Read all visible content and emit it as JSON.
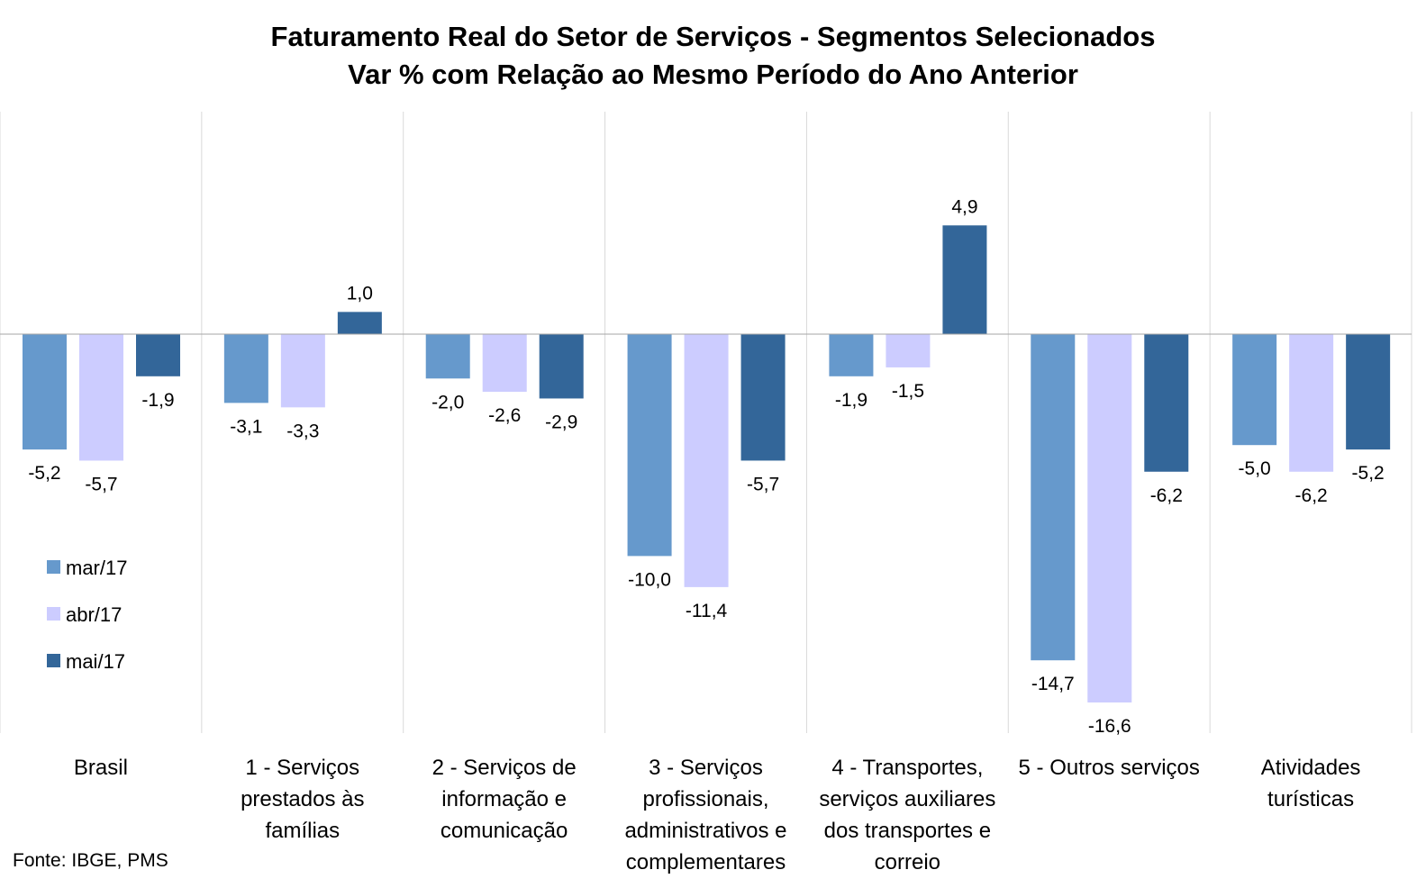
{
  "chart_data": {
    "type": "bar",
    "title": "Faturamento Real do Setor de Serviços - Segmentos Selecionados",
    "subtitle": "Var % com Relação ao Mesmo Período do Ano Anterior",
    "categories": [
      [
        "Brasil"
      ],
      [
        "1 - Serviços",
        "prestados às",
        "famílias"
      ],
      [
        "2 - Serviços de",
        "informação e",
        "comunicação"
      ],
      [
        "3 - Serviços",
        "profissionais,",
        "administrativos e",
        "complementares"
      ],
      [
        "4 - Transportes,",
        "serviços auxiliares",
        "dos transportes e",
        "correio"
      ],
      [
        "5 - Outros serviços"
      ],
      [
        "Atividades",
        "turísticas"
      ]
    ],
    "series": [
      {
        "name": "mar/17",
        "color": "#6699CC",
        "values": [
          -5.2,
          -3.1,
          -2.0,
          -10.0,
          -1.9,
          -14.7,
          -5.0
        ],
        "labels": [
          "-5,2",
          "-3,1",
          "-2,0",
          "-10,0",
          "-1,9",
          "-14,7",
          "-5,0"
        ]
      },
      {
        "name": "abr/17",
        "color": "#CCCCFF",
        "values": [
          -5.7,
          -3.3,
          -2.6,
          -11.4,
          -1.5,
          -16.6,
          -6.2
        ],
        "labels": [
          "-5,7",
          "-3,3",
          "-2,6",
          "-11,4",
          "-1,5",
          "-16,6",
          "-6,2"
        ]
      },
      {
        "name": "mai/17",
        "color": "#336699",
        "values": [
          -1.9,
          1.0,
          -2.9,
          -5.7,
          4.9,
          -6.2,
          -5.2
        ],
        "labels": [
          "-1,9",
          "1,0",
          "-2,9",
          "-5,7",
          "4,9",
          "-6,2",
          "-5,2"
        ]
      }
    ],
    "ylim": [
      -18,
      10
    ],
    "legend_position": "left-middle",
    "grid": "vertical category separators",
    "source": "Fonte: IBGE, PMS"
  }
}
